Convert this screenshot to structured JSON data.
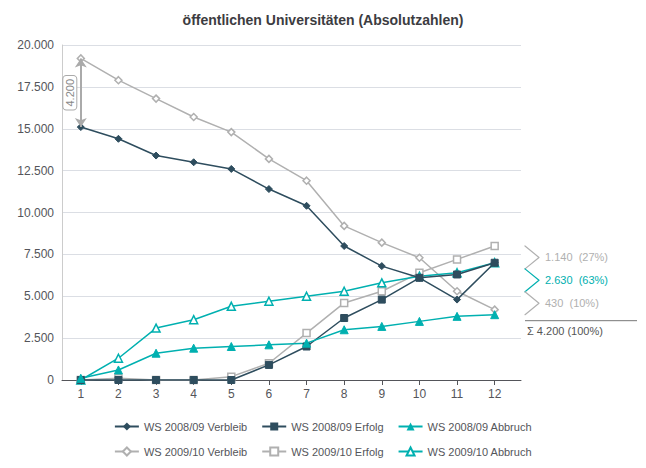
{
  "chart_data": {
    "type": "line",
    "title": "öffentlichen Universitäten (Absolutzahlen)",
    "x": [
      1,
      2,
      3,
      4,
      5,
      6,
      7,
      8,
      9,
      10,
      11,
      12
    ],
    "xlim": [
      0.5,
      12.7
    ],
    "xticks": [
      1,
      2,
      3,
      4,
      5,
      6,
      7,
      8,
      9,
      10,
      11,
      12
    ],
    "ylim": [
      0,
      20000
    ],
    "yticks": [
      0,
      {
        "value": 2500,
        "label": "2.500"
      },
      {
        "value": 5000,
        "label": "5.000"
      },
      {
        "value": 7500,
        "label": "7.500"
      },
      {
        "value": 10000,
        "label": "10.000"
      },
      {
        "value": 12500,
        "label": "12.500"
      },
      {
        "value": 15000,
        "label": "15.000"
      },
      {
        "value": 17500,
        "label": "17.500"
      },
      {
        "value": 20000,
        "label": "20.000"
      }
    ],
    "grid": "y",
    "legend": "bottom",
    "series": [
      {
        "name": "WS 2008/09 Verbleib",
        "color": "#2e4d5e",
        "marker": "diamond",
        "values": [
          15100,
          14400,
          13400,
          13000,
          12600,
          11400,
          10400,
          8000,
          6800,
          6100,
          4800,
          7000
        ]
      },
      {
        "name": "WS 2008/09 Erfolg",
        "color": "#2e4d5e",
        "marker": "square",
        "values": [
          0,
          0,
          0,
          0,
          0,
          900,
          2000,
          3700,
          4800,
          6100,
          6300,
          7000
        ]
      },
      {
        "name": "WS 2008/09 Abbruch",
        "color": "#00b0b0",
        "marker": "triangle",
        "values": [
          100,
          600,
          1600,
          1900,
          2000,
          2100,
          2200,
          3000,
          3200,
          3500,
          3800,
          3900
        ]
      },
      {
        "name": "WS 2009/10 Verbleib",
        "color": "#b0b0b0",
        "marker": "open_diamond",
        "values": [
          19200,
          17900,
          16800,
          15700,
          14800,
          13200,
          11900,
          9200,
          8200,
          7300,
          5300,
          4200
        ]
      },
      {
        "name": "WS 2009/10 Erfolg",
        "color": "#b0b0b0",
        "marker": "open_square",
        "values": [
          0,
          100,
          0,
          0,
          200,
          1000,
          2800,
          4600,
          5300,
          6400,
          7200,
          8000
        ]
      },
      {
        "name": "WS 2009/10 Abbruch",
        "color": "#00b0b0",
        "marker": "open_triangle",
        "values": [
          0,
          1300,
          3100,
          3600,
          4400,
          4700,
          5000,
          5300,
          5800,
          6200,
          6400,
          7000
        ]
      }
    ],
    "annotations": [
      {
        "text": "4.200"
      },
      {
        "text": "1.140  (27%)",
        "color": "#b0b0b0"
      },
      {
        "text": "2.630  (63%)",
        "color": "#00b0b0"
      },
      {
        "text": "430  (10%)",
        "color": "#b0b0b0"
      },
      {
        "text": "Σ 4.200 (100%)"
      }
    ]
  }
}
